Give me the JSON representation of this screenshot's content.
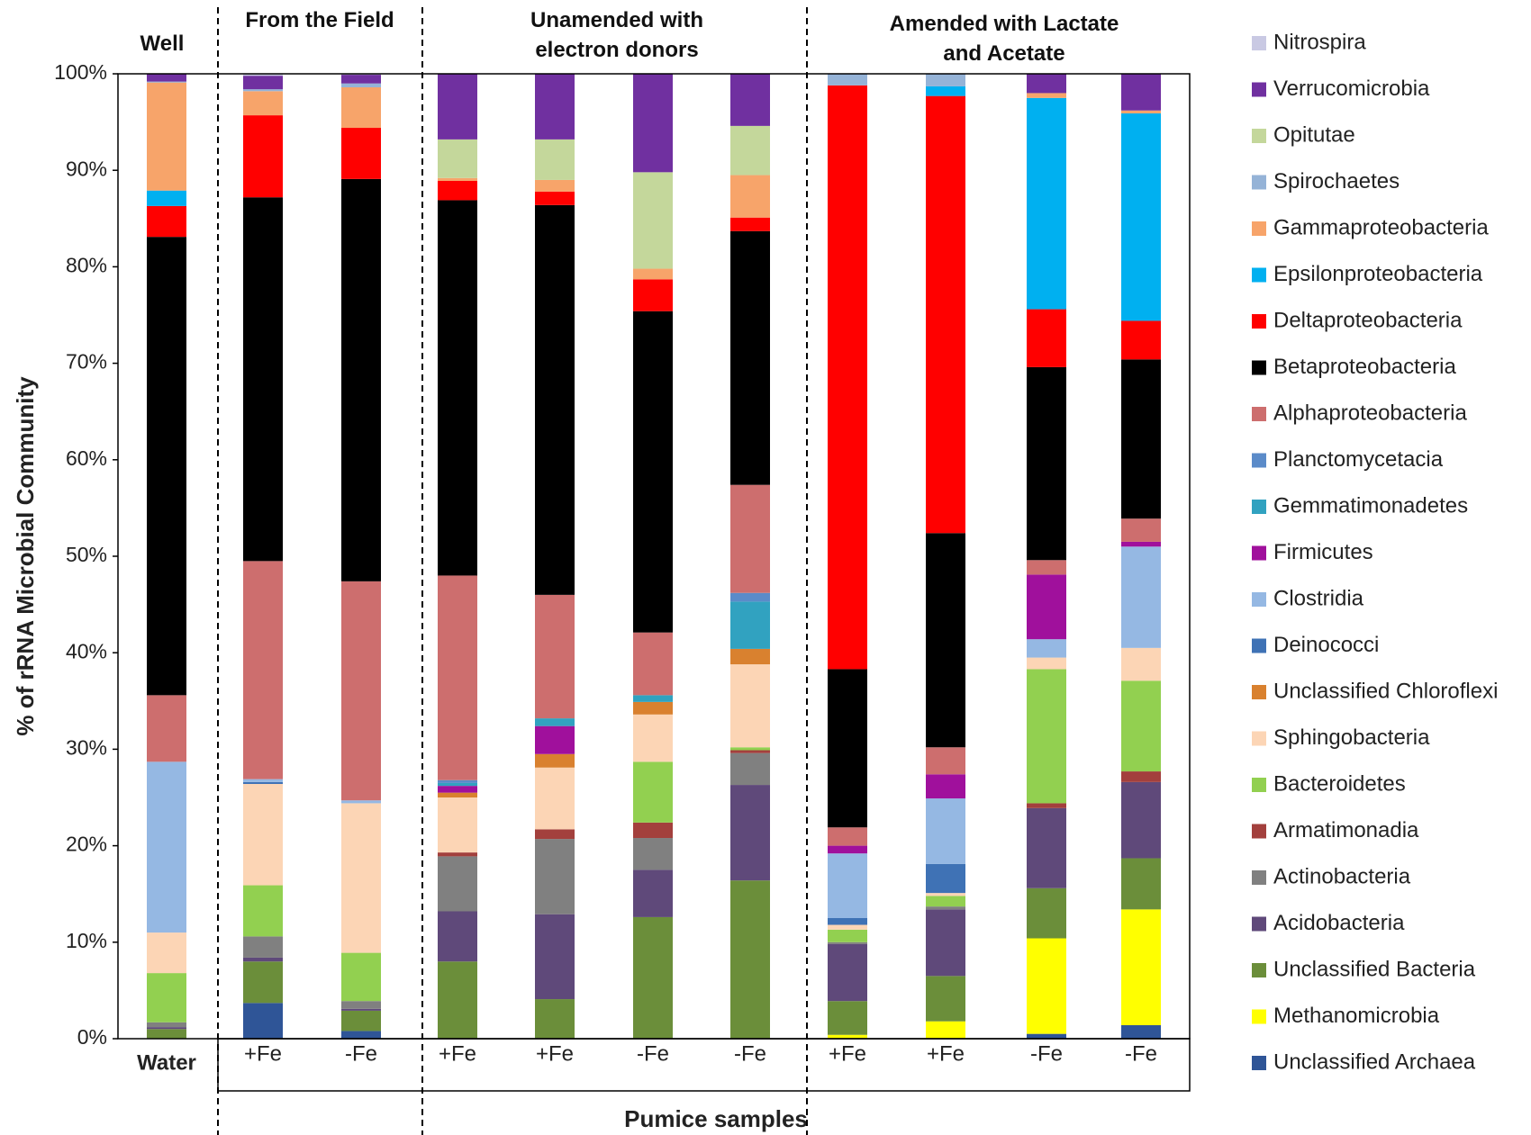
{
  "chart_data": {
    "type": "stacked_bar",
    "y_axis_label": "% of rRNA Microbial Community",
    "x_axis_label": "Pumice samples",
    "group_labels": [
      "Well",
      "From the Field",
      "Unamended with electron donors",
      "Amended with Lactate and Acetate"
    ],
    "categories": [
      "Water",
      "+Fe",
      "-Fe",
      "+Fe",
      "+Fe",
      "-Fe",
      "-Fe",
      "+Fe",
      "+Fe",
      "-Fe",
      "-Fe"
    ],
    "ylim": [
      0,
      100
    ],
    "yticks": [
      {
        "value": 0,
        "label": "0%"
      },
      {
        "value": 10,
        "label": "10%"
      },
      {
        "value": 20,
        "label": "20%"
      },
      {
        "value": 30,
        "label": "30%"
      },
      {
        "value": 40,
        "label": "40%"
      },
      {
        "value": 50,
        "label": "50%"
      },
      {
        "value": 60,
        "label": "60%"
      },
      {
        "value": 70,
        "label": "70%"
      },
      {
        "value": 80,
        "label": "80%"
      },
      {
        "value": 90,
        "label": "90%"
      },
      {
        "value": 100,
        "label": "100%"
      }
    ],
    "series": [
      {
        "name": "Nitrospira",
        "color": "#c9c9e3",
        "values": [
          0,
          0.2,
          0.1,
          0,
          0,
          0,
          0,
          0,
          0,
          0,
          0
        ]
      },
      {
        "name": "Verrucomicrobia",
        "color": "#7030a0",
        "values": [
          0.8,
          1.4,
          0.9,
          6.8,
          6.8,
          10.2,
          5.4,
          0,
          0,
          2.0,
          3.8
        ]
      },
      {
        "name": "Opitutae",
        "color": "#c4d79b",
        "values": [
          0,
          0,
          0,
          4.0,
          4.2,
          10.0,
          5.1,
          0,
          0,
          0,
          0
        ]
      },
      {
        "name": "Spirochaetes",
        "color": "#95b3d7",
        "values": [
          0.1,
          0.2,
          0.4,
          0,
          0,
          0,
          0,
          1.2,
          1.3,
          0,
          0
        ]
      },
      {
        "name": "Gammaproteobacteria",
        "color": "#f7a46a",
        "values": [
          11.2,
          2.5,
          4.2,
          0.3,
          1.2,
          1.1,
          4.4,
          0,
          0,
          0.5,
          0.3
        ]
      },
      {
        "name": "Epsilonproteobacteria",
        "color": "#00b0f0",
        "values": [
          1.6,
          0,
          0,
          0,
          0,
          0,
          0,
          0,
          1.0,
          21.9,
          21.5
        ]
      },
      {
        "name": "Deltaproteobacteria",
        "color": "#ff0000",
        "values": [
          3.2,
          8.5,
          5.3,
          2.0,
          1.4,
          3.3,
          1.4,
          60.5,
          45.3,
          6.0,
          4.0
        ]
      },
      {
        "name": "Betaproteobacteria",
        "color": "#000000",
        "values": [
          47.5,
          37.7,
          41.7,
          38.9,
          40.4,
          33.3,
          26.3,
          16.4,
          22.2,
          20.0,
          16.5
        ]
      },
      {
        "name": "Alphaproteobacteria",
        "color": "#cd6e6e",
        "values": [
          6.9,
          22.6,
          22.7,
          21.2,
          12.8,
          6.5,
          11.2,
          1.9,
          2.8,
          1.5,
          2.4
        ]
      },
      {
        "name": "Planctomycetacia",
        "color": "#5b8bc9",
        "values": [
          0,
          0,
          0,
          0.3,
          0,
          0,
          0.9,
          0,
          0,
          0,
          0
        ]
      },
      {
        "name": "Gemmatimonadetes",
        "color": "#31a2c0",
        "values": [
          0,
          0,
          0,
          0.3,
          0.8,
          0.7,
          4.9,
          0,
          0,
          0,
          0
        ]
      },
      {
        "name": "Firmicutes",
        "color": "#a0109c",
        "values": [
          0,
          0,
          0,
          0.7,
          2.9,
          0,
          0,
          0.8,
          2.5,
          6.7,
          0.5
        ]
      },
      {
        "name": "Clostridia",
        "color": "#95b8e3",
        "values": [
          17.7,
          0.3,
          0.3,
          0,
          0,
          0,
          0,
          6.7,
          6.8,
          1.9,
          10.5
        ]
      },
      {
        "name": "Deinococci",
        "color": "#3f72b5",
        "values": [
          0,
          0.2,
          0,
          0,
          0,
          0,
          0,
          0.7,
          3.0,
          0,
          0
        ]
      },
      {
        "name": "Unclassified Chloroflexi",
        "color": "#d9812f",
        "values": [
          0,
          0,
          0,
          0.5,
          1.4,
          1.3,
          1.6,
          0,
          0,
          0,
          0
        ]
      },
      {
        "name": "Sphingobacteria",
        "color": "#fcd5b5",
        "values": [
          4.2,
          10.5,
          15.5,
          5.7,
          6.4,
          4.9,
          8.6,
          0.5,
          0.3,
          1.2,
          3.4
        ]
      },
      {
        "name": "Bacteroidetes",
        "color": "#92d050",
        "values": [
          5.1,
          5.3,
          5.0,
          0,
          0,
          6.3,
          0.3,
          1.3,
          1.1,
          13.9,
          9.4
        ]
      },
      {
        "name": "Armatimonadia",
        "color": "#a3403d",
        "values": [
          0,
          0,
          0,
          0.4,
          1.0,
          1.6,
          0.3,
          0,
          0,
          0.5,
          1.1
        ]
      },
      {
        "name": "Actinobacteria",
        "color": "#808080",
        "values": [
          0.5,
          2.2,
          0.8,
          5.7,
          7.8,
          3.3,
          3.3,
          0.2,
          0.3,
          0,
          0
        ]
      },
      {
        "name": "Acidobacteria",
        "color": "#5f497a",
        "values": [
          0.2,
          0.4,
          0.2,
          5.2,
          8.8,
          4.9,
          9.9,
          5.9,
          6.9,
          8.3,
          7.9
        ]
      },
      {
        "name": "Unclassified Bacteria",
        "color": "#6b8e3a",
        "values": [
          1.0,
          4.3,
          2.1,
          8.0,
          4.1,
          12.6,
          16.4,
          3.5,
          4.7,
          5.2,
          5.3
        ]
      },
      {
        "name": "Methanomicrobia",
        "color": "#ffff00",
        "values": [
          0,
          0,
          0,
          0,
          0,
          0,
          0,
          0.4,
          1.8,
          9.9,
          12.0
        ]
      },
      {
        "name": "Unclassified Archaea",
        "color": "#2f5597",
        "values": [
          0,
          3.7,
          0.8,
          0,
          0,
          0,
          0,
          0,
          0,
          0.5,
          1.4
        ]
      }
    ]
  }
}
